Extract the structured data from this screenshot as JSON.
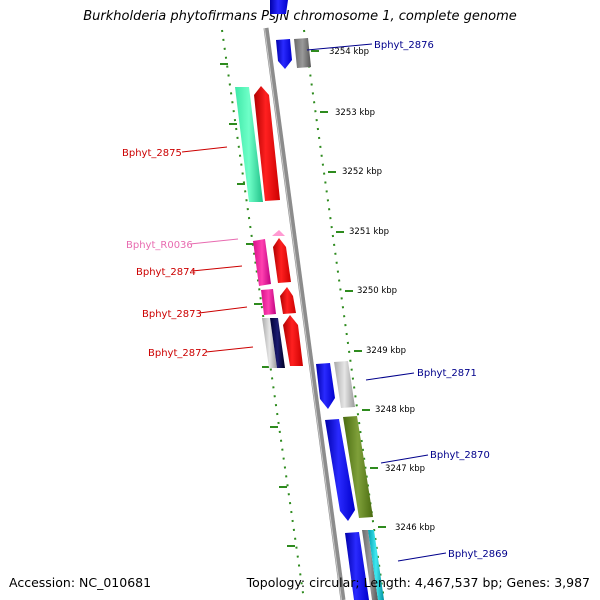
{
  "title": "Burkholderia phytofirmans PsJN chromosome 1, complete genome",
  "footer": {
    "accession": "Accession: NC_010681",
    "topology": "Topology: circular; Length: 4,467,537 bp; Genes: 3,987"
  },
  "colors": {
    "backbone": "#8c8c8c",
    "tick": "#2e8b1e",
    "forward_label": "#00008b",
    "reverse_label": "#cc0000",
    "rna_label": "#e86bb0"
  },
  "scale_labels": [
    "3254 kbp",
    "3253 kbp",
    "3252 kbp",
    "3251 kbp",
    "3250 kbp",
    "3249 kbp",
    "3248 kbp",
    "3247 kbp",
    "3246 kbp"
  ],
  "gene_labels": [
    {
      "text": "Bphyt_2876",
      "strand": "forward"
    },
    {
      "text": "Bphyt_2875",
      "strand": "reverse"
    },
    {
      "text": "Bphyt_R0036",
      "strand": "rna"
    },
    {
      "text": "Bphyt_2874",
      "strand": "reverse"
    },
    {
      "text": "Bphyt_2873",
      "strand": "reverse"
    },
    {
      "text": "Bphyt_2872",
      "strand": "reverse"
    },
    {
      "text": "Bphyt_2871",
      "strand": "forward"
    },
    {
      "text": "Bphyt_2870",
      "strand": "forward"
    },
    {
      "text": "Bphyt_2869",
      "strand": "forward"
    }
  ]
}
